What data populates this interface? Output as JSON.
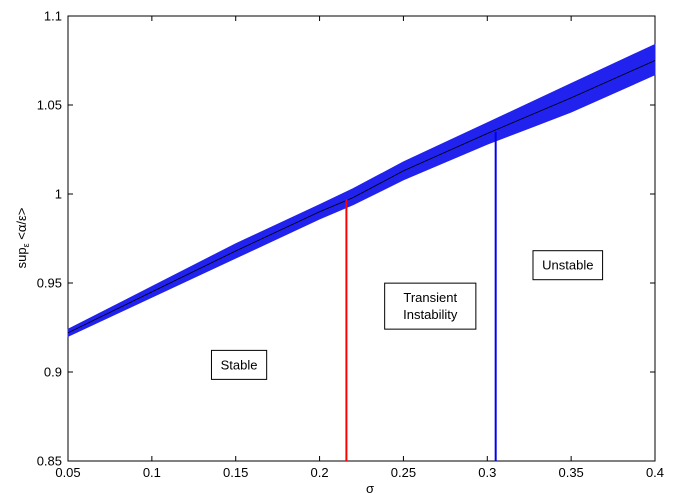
{
  "chart_data": {
    "type": "line",
    "title": "",
    "xlabel": "σ",
    "ylabel": "sup_ε <α/ε>",
    "ylabel_main": "sup",
    "ylabel_sub": "ε",
    "ylabel_rest": " <α/ε>",
    "xlim": [
      0.05,
      0.4
    ],
    "ylim": [
      0.85,
      1.1
    ],
    "x_ticks": [
      0.05,
      0.1,
      0.15,
      0.2,
      0.25,
      0.3,
      0.35,
      0.4
    ],
    "x_tick_labels": [
      "0.05",
      "0.1",
      "0.15",
      "0.2",
      "0.25",
      "0.3",
      "0.35",
      "0.4"
    ],
    "y_ticks": [
      0.85,
      0.9,
      0.95,
      1.0,
      1.05,
      1.1
    ],
    "y_tick_labels": [
      "0.85",
      "0.9",
      "0.95",
      "1",
      "1.05",
      "1.1"
    ],
    "grid": false,
    "band": {
      "color": "#2222ee",
      "x": [
        0.05,
        0.1,
        0.15,
        0.2,
        0.22,
        0.25,
        0.3,
        0.35,
        0.4
      ],
      "upper": [
        0.924,
        0.948,
        0.972,
        0.994,
        1.003,
        1.018,
        1.04,
        1.062,
        1.084
      ],
      "lower": [
        0.92,
        0.942,
        0.964,
        0.986,
        0.994,
        1.008,
        1.028,
        1.046,
        1.067
      ]
    },
    "series": [
      {
        "color": "#000000",
        "x": [
          0.05,
          0.1,
          0.15,
          0.2,
          0.22,
          0.25,
          0.3,
          0.35,
          0.4
        ],
        "y": [
          0.922,
          0.945,
          0.968,
          0.99,
          0.998,
          1.013,
          1.034,
          1.054,
          1.075
        ]
      }
    ],
    "vlines": [
      {
        "color": "#ff0000",
        "x": 0.216,
        "y_from": 0.85,
        "y_to": 0.997
      },
      {
        "color": "#0000ee",
        "x": 0.305,
        "y_from": 0.85,
        "y_to": 1.035
      }
    ],
    "annotations": [
      {
        "lines": [
          "Stable"
        ],
        "x": 0.152,
        "y": 0.904
      },
      {
        "lines": [
          "Transient",
          "Instability"
        ],
        "x": 0.266,
        "y": 0.937
      },
      {
        "lines": [
          "Unstable"
        ],
        "x": 0.348,
        "y": 0.96
      }
    ]
  }
}
